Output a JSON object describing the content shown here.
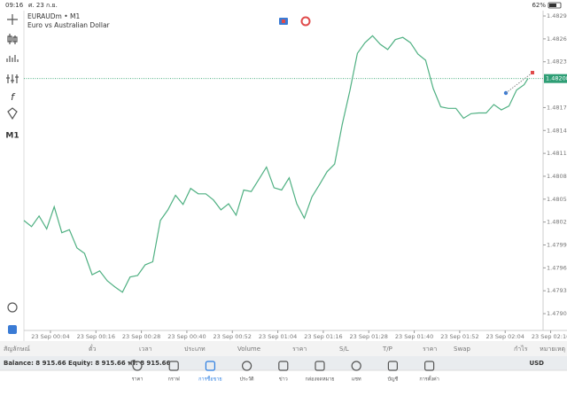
{
  "status_bar": {
    "time": "09:16",
    "date": "ศ. 23 ก.ย.",
    "battery": "62%"
  },
  "toolbar": {
    "timeframe": "M1"
  },
  "chart_data": {
    "type": "line",
    "title": "EURAUDm • M1",
    "subtitle": "Euro vs Australian Dollar",
    "x": [
      -3,
      -1,
      1,
      3,
      5,
      7,
      9,
      11,
      13,
      15,
      17,
      19,
      21,
      23,
      25,
      27,
      29,
      31,
      33,
      35,
      37,
      39,
      41,
      43,
      45,
      47,
      49,
      51,
      53,
      55,
      57,
      59,
      61,
      63,
      65,
      67,
      69,
      71,
      73,
      75,
      77,
      79,
      81,
      83,
      85,
      87,
      89,
      91,
      93,
      95,
      97,
      99,
      101,
      103,
      105,
      107,
      109,
      111,
      113,
      115,
      117,
      119,
      121,
      123,
      125,
      127,
      129,
      130
    ],
    "series": [
      {
        "name": "EURAUDm",
        "color": "#4fb082",
        "values": [
          1.48022,
          1.48014,
          1.48028,
          1.48011,
          1.4804,
          1.48006,
          1.4801,
          1.47986,
          1.47979,
          1.47951,
          1.47956,
          1.47943,
          1.47935,
          1.47928,
          1.47948,
          1.4795,
          1.47964,
          1.47968,
          1.48022,
          1.48036,
          1.48055,
          1.48043,
          1.48064,
          1.48057,
          1.48057,
          1.48049,
          1.48036,
          1.48044,
          1.48029,
          1.48062,
          1.4806,
          1.48076,
          1.48092,
          1.48065,
          1.48062,
          1.48078,
          1.48044,
          1.48025,
          1.48053,
          1.48069,
          1.48086,
          1.48096,
          1.48148,
          1.48192,
          1.48241,
          1.48255,
          1.48264,
          1.48253,
          1.48246,
          1.48259,
          1.48262,
          1.48255,
          1.4824,
          1.48232,
          1.48195,
          1.48171,
          1.48169,
          1.48169,
          1.48156,
          1.48162,
          1.48163,
          1.48163,
          1.48174,
          1.48167,
          1.48172,
          1.48193,
          1.482,
          1.48208
        ]
      }
    ],
    "current_price": {
      "value": 1.48208,
      "label": "1.48208"
    },
    "xlim": [
      -3,
      134
    ],
    "xticks": [
      {
        "value": 4,
        "label": "23 Sep 00:04"
      },
      {
        "value": 16,
        "label": "23 Sep 00:16"
      },
      {
        "value": 28,
        "label": "23 Sep 00:28"
      },
      {
        "value": 40,
        "label": "23 Sep 00:40"
      },
      {
        "value": 52,
        "label": "23 Sep 00:52"
      },
      {
        "value": 64,
        "label": "23 Sep 01:04"
      },
      {
        "value": 76,
        "label": "23 Sep 01:16"
      },
      {
        "value": 88,
        "label": "23 Sep 01:28"
      },
      {
        "value": 100,
        "label": "23 Sep 01:40"
      },
      {
        "value": 112,
        "label": "23 Sep 01:52"
      },
      {
        "value": 124,
        "label": "23 Sep 02:04"
      },
      {
        "value": 136,
        "label": "23 Sep 02:16"
      }
    ],
    "ylim": [
      1.47878,
      1.48297
    ],
    "yticks": [
      {
        "value": 1.4829,
        "label": "1.48290"
      },
      {
        "value": 1.4826,
        "label": "1.48260"
      },
      {
        "value": 1.4823,
        "label": "1.48230"
      },
      {
        "value": 1.4817,
        "label": "1.48170"
      },
      {
        "value": 1.4814,
        "label": "1.48140"
      },
      {
        "value": 1.4811,
        "label": "1.48110"
      },
      {
        "value": 1.4808,
        "label": "1.48080"
      },
      {
        "value": 1.4805,
        "label": "1.48050"
      },
      {
        "value": 1.4802,
        "label": "1.48020"
      },
      {
        "value": 1.4799,
        "label": "1.47990"
      },
      {
        "value": 1.4796,
        "label": "1.47960"
      },
      {
        "value": 1.4793,
        "label": "1.47930"
      },
      {
        "value": 1.479,
        "label": "1.47900"
      }
    ],
    "grid": false
  },
  "table": {
    "columns": [
      "สัญลักษณ์",
      "ตั๋ว",
      "เวลา",
      "ประเภท",
      "Volume",
      "ราคา",
      "S/L",
      "T/P",
      "ราคา",
      "Swap",
      "กำไร",
      "หมายเหตุ"
    ]
  },
  "balance": {
    "text": "Balance: 8 915.66 Equity: 8 915.66 ฟรี: 8 915.66",
    "currency": "USD"
  },
  "nav": {
    "tabs": [
      "ราคา",
      "กราฟ",
      "การซื้อขาย",
      "ประวัติ",
      "ข่าว",
      "กล่องจดหมาย",
      "แชท",
      "บัญชี",
      "การตั้งค่า"
    ],
    "active": 2
  }
}
